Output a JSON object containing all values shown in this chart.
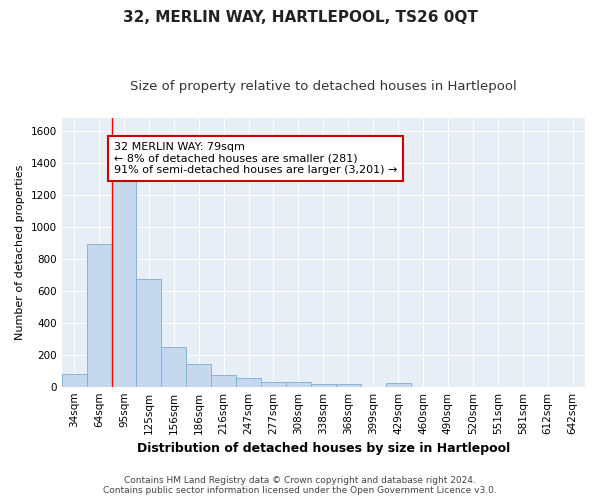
{
  "title": "32, MERLIN WAY, HARTLEPOOL, TS26 0QT",
  "subtitle": "Size of property relative to detached houses in Hartlepool",
  "xlabel": "Distribution of detached houses by size in Hartlepool",
  "ylabel": "Number of detached properties",
  "bar_color": "#c5d8ee",
  "bar_edge_color": "#7aadd4",
  "bg_color": "#e8eef6",
  "grid_color": "#ffffff",
  "categories": [
    "34sqm",
    "64sqm",
    "95sqm",
    "125sqm",
    "156sqm",
    "186sqm",
    "216sqm",
    "247sqm",
    "277sqm",
    "308sqm",
    "338sqm",
    "368sqm",
    "399sqm",
    "429sqm",
    "460sqm",
    "490sqm",
    "520sqm",
    "551sqm",
    "581sqm",
    "612sqm",
    "642sqm"
  ],
  "values": [
    80,
    890,
    1320,
    670,
    250,
    140,
    70,
    55,
    28,
    28,
    18,
    18,
    0,
    20,
    0,
    0,
    0,
    0,
    0,
    0,
    0
  ],
  "ylim": [
    0,
    1680
  ],
  "yticks": [
    0,
    200,
    400,
    600,
    800,
    1000,
    1200,
    1400,
    1600
  ],
  "property_line_x": 1.5,
  "annotation_text": "32 MERLIN WAY: 79sqm\n← 8% of detached houses are smaller (281)\n91% of semi-detached houses are larger (3,201) →",
  "annotation_box_color": "#ffffff",
  "annotation_box_edge": "#cc0000",
  "footnote": "Contains HM Land Registry data © Crown copyright and database right 2024.\nContains public sector information licensed under the Open Government Licence v3.0.",
  "title_fontsize": 11,
  "subtitle_fontsize": 9.5,
  "xlabel_fontsize": 9,
  "ylabel_fontsize": 8,
  "tick_fontsize": 7.5,
  "annotation_fontsize": 8,
  "footnote_fontsize": 6.5
}
